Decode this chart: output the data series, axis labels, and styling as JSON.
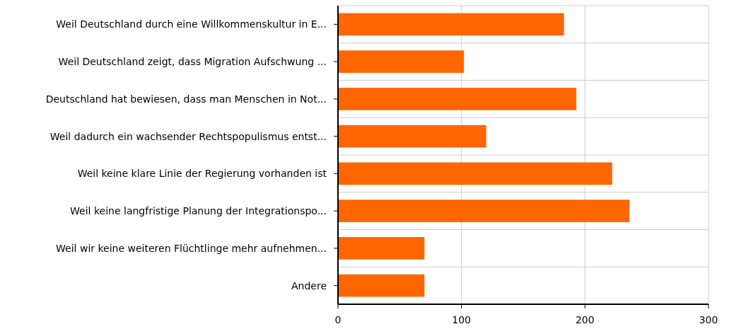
{
  "chart_data": {
    "type": "bar",
    "orientation": "horizontal",
    "categories": [
      "Weil Deutschland durch eine Willkommenskultur in E...",
      "Weil Deutschland zeigt, dass Migration Aufschwung ...",
      "Deutschland hat bewiesen, dass man Menschen in Not...",
      "Weil dadurch ein wachsender Rechtspopulismus entst...",
      "Weil keine klare Linie der Regierung vorhanden ist",
      "Weil keine langfristige Planung der Integrationspo...",
      "Weil wir keine weiteren Flüchtlinge mehr aufnehmen...",
      "Andere"
    ],
    "values": [
      183,
      102,
      193,
      120,
      222,
      236,
      70,
      70
    ],
    "color": "#ff6600",
    "xlim": [
      0,
      300
    ],
    "xticks": [
      0,
      100,
      200,
      300
    ],
    "grid": true
  }
}
